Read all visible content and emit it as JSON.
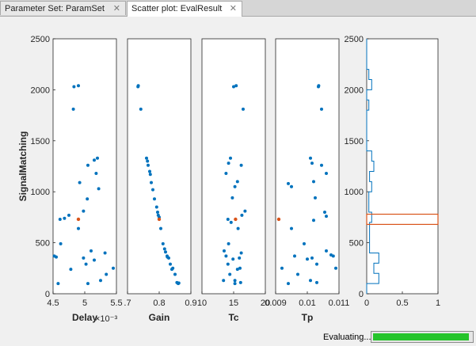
{
  "tabs": [
    {
      "label": "Parameter Set:  ParamSet",
      "close": "✕"
    },
    {
      "label": "Scatter plot:  EvalResult",
      "close": "✕"
    }
  ],
  "status": {
    "text": "Evaluating...",
    "progress": 0.98
  },
  "colors": {
    "points": "#0072bd",
    "highlight": "#d95319",
    "axes": "#262626"
  },
  "chart_data": {
    "type": "scatter",
    "ylabel": "SignalMatching",
    "ylim": [
      0,
      2500
    ],
    "yticks": [
      "0",
      "500",
      "1000",
      "1500",
      "2000",
      "2500"
    ],
    "highlight_y": 730,
    "panels": [
      {
        "xlabel": "Delay",
        "xlim": [
          4.5,
          5.5
        ],
        "xticks": [
          {
            "v": 4.5,
            "label": "4.5"
          },
          {
            "v": 5.0,
            "label": "5"
          },
          {
            "v": 5.5,
            "label": "5.5"
          }
        ],
        "exponent": "×10⁻³",
        "points": [
          [
            4.83,
            2030
          ],
          [
            4.9,
            2040
          ],
          [
            4.82,
            1810
          ],
          [
            5.2,
            1330
          ],
          [
            5.15,
            1310
          ],
          [
            5.05,
            1260
          ],
          [
            5.18,
            1180
          ],
          [
            4.92,
            1090
          ],
          [
            5.22,
            1030
          ],
          [
            5.04,
            930
          ],
          [
            4.98,
            810
          ],
          [
            4.75,
            770
          ],
          [
            4.68,
            740
          ],
          [
            4.61,
            730
          ],
          [
            4.9,
            640
          ],
          [
            4.62,
            490
          ],
          [
            5.1,
            420
          ],
          [
            5.32,
            400
          ],
          [
            4.52,
            370
          ],
          [
            4.55,
            360
          ],
          [
            4.98,
            350
          ],
          [
            5.15,
            330
          ],
          [
            5.02,
            290
          ],
          [
            4.78,
            240
          ],
          [
            5.45,
            250
          ],
          [
            5.34,
            190
          ],
          [
            5.05,
            100
          ],
          [
            5.25,
            130
          ],
          [
            4.58,
            100
          ]
        ],
        "highlight": [
          4.9,
          730
        ]
      },
      {
        "xlabel": "Gain",
        "xlim": [
          0.7,
          0.9
        ],
        "xticks": [
          {
            "v": 0.7,
            "label": ".7"
          },
          {
            "v": 0.8,
            "label": "0.8"
          },
          {
            "v": 0.9,
            "label": "0.9"
          }
        ],
        "exponent": "",
        "points": [
          [
            0.733,
            2030
          ],
          [
            0.734,
            2040
          ],
          [
            0.742,
            1810
          ],
          [
            0.76,
            1330
          ],
          [
            0.763,
            1300
          ],
          [
            0.765,
            1260
          ],
          [
            0.77,
            1200
          ],
          [
            0.772,
            1170
          ],
          [
            0.775,
            1090
          ],
          [
            0.78,
            1020
          ],
          [
            0.785,
            930
          ],
          [
            0.792,
            850
          ],
          [
            0.795,
            800
          ],
          [
            0.797,
            770
          ],
          [
            0.8,
            750
          ],
          [
            0.805,
            640
          ],
          [
            0.812,
            490
          ],
          [
            0.817,
            440
          ],
          [
            0.82,
            410
          ],
          [
            0.825,
            370
          ],
          [
            0.826,
            360
          ],
          [
            0.83,
            350
          ],
          [
            0.835,
            290
          ],
          [
            0.84,
            240
          ],
          [
            0.843,
            250
          ],
          [
            0.85,
            190
          ],
          [
            0.856,
            110
          ],
          [
            0.86,
            100
          ],
          [
            0.862,
            105
          ]
        ],
        "highlight": [
          0.8,
          730
        ]
      },
      {
        "xlabel": "Tc",
        "xlim": [
          10,
          20
        ],
        "xticks": [
          {
            "v": 10,
            "label": "10"
          },
          {
            "v": 15,
            "label": "15"
          },
          {
            "v": 20,
            "label": "20"
          }
        ],
        "exponent": "",
        "points": [
          [
            15,
            2030
          ],
          [
            15.4,
            2040
          ],
          [
            16.5,
            1810
          ],
          [
            14.5,
            1330
          ],
          [
            14.2,
            1280
          ],
          [
            16.2,
            1260
          ],
          [
            13.8,
            1180
          ],
          [
            15.6,
            1100
          ],
          [
            15.2,
            1050
          ],
          [
            14.8,
            940
          ],
          [
            16.8,
            810
          ],
          [
            16.3,
            770
          ],
          [
            14.1,
            730
          ],
          [
            14.6,
            700
          ],
          [
            15.7,
            640
          ],
          [
            14.2,
            490
          ],
          [
            13.5,
            420
          ],
          [
            16.2,
            400
          ],
          [
            13.8,
            370
          ],
          [
            15.9,
            350
          ],
          [
            14.9,
            340
          ],
          [
            14.1,
            290
          ],
          [
            16,
            250
          ],
          [
            15.6,
            240
          ],
          [
            14.4,
            190
          ],
          [
            15.2,
            130
          ],
          [
            13.4,
            130
          ],
          [
            15.2,
            100
          ],
          [
            16.1,
            110
          ]
        ],
        "highlight": [
          15.3,
          730
        ]
      },
      {
        "xlabel": "Tp",
        "xlim": [
          0.009,
          0.011
        ],
        "xticks": [
          {
            "v": 0.009,
            "label": "0.009"
          },
          {
            "v": 0.01,
            "label": "0.01"
          },
          {
            "v": 0.011,
            "label": "0.011"
          }
        ],
        "exponent": "",
        "points": [
          [
            0.01035,
            2030
          ],
          [
            0.01036,
            2040
          ],
          [
            0.01045,
            1810
          ],
          [
            0.0101,
            1330
          ],
          [
            0.01015,
            1280
          ],
          [
            0.01045,
            1260
          ],
          [
            0.0106,
            1180
          ],
          [
            0.0102,
            1100
          ],
          [
            0.0094,
            1080
          ],
          [
            0.0095,
            1050
          ],
          [
            0.01025,
            940
          ],
          [
            0.01055,
            800
          ],
          [
            0.0106,
            760
          ],
          [
            0.0102,
            720
          ],
          [
            0.0095,
            640
          ],
          [
            0.0099,
            490
          ],
          [
            0.0106,
            420
          ],
          [
            0.01075,
            380
          ],
          [
            0.01082,
            370
          ],
          [
            0.0096,
            370
          ],
          [
            0.01015,
            350
          ],
          [
            0.01,
            340
          ],
          [
            0.0103,
            290
          ],
          [
            0.0092,
            250
          ],
          [
            0.0109,
            250
          ],
          [
            0.0097,
            190
          ],
          [
            0.0101,
            130
          ],
          [
            0.0103,
            110
          ],
          [
            0.0094,
            100
          ]
        ],
        "highlight": [
          0.0091,
          730
        ]
      }
    ],
    "histogram": {
      "xlim": [
        0,
        1
      ],
      "xticks": [
        {
          "v": 0,
          "label": "0"
        },
        {
          "v": 0.5,
          "label": "0.5"
        },
        {
          "v": 1,
          "label": "1"
        }
      ],
      "bin_width": 100,
      "bins": [
        [
          0,
          100,
          0
        ],
        [
          100,
          200,
          0.17
        ],
        [
          200,
          300,
          0.1
        ],
        [
          300,
          400,
          0.17
        ],
        [
          400,
          500,
          0.04
        ],
        [
          500,
          600,
          0.04
        ],
        [
          600,
          700,
          0.04
        ],
        [
          700,
          800,
          0.07
        ],
        [
          800,
          900,
          0.03
        ],
        [
          900,
          1000,
          0.03
        ],
        [
          1000,
          1100,
          0.07
        ],
        [
          1100,
          1200,
          0.04
        ],
        [
          1200,
          1300,
          0.1
        ],
        [
          1300,
          1400,
          0.07
        ],
        [
          1400,
          1500,
          0
        ],
        [
          1500,
          1600,
          0
        ],
        [
          1600,
          1700,
          0
        ],
        [
          1700,
          1800,
          0
        ],
        [
          1800,
          1900,
          0.03
        ],
        [
          1900,
          2000,
          0
        ],
        [
          2000,
          2100,
          0.07
        ],
        [
          2100,
          2200,
          0.03
        ],
        [
          2200,
          2300,
          0
        ],
        [
          2300,
          2400,
          0
        ],
        [
          2400,
          2500,
          0
        ]
      ],
      "highlight_band": [
        680,
        780
      ]
    }
  }
}
